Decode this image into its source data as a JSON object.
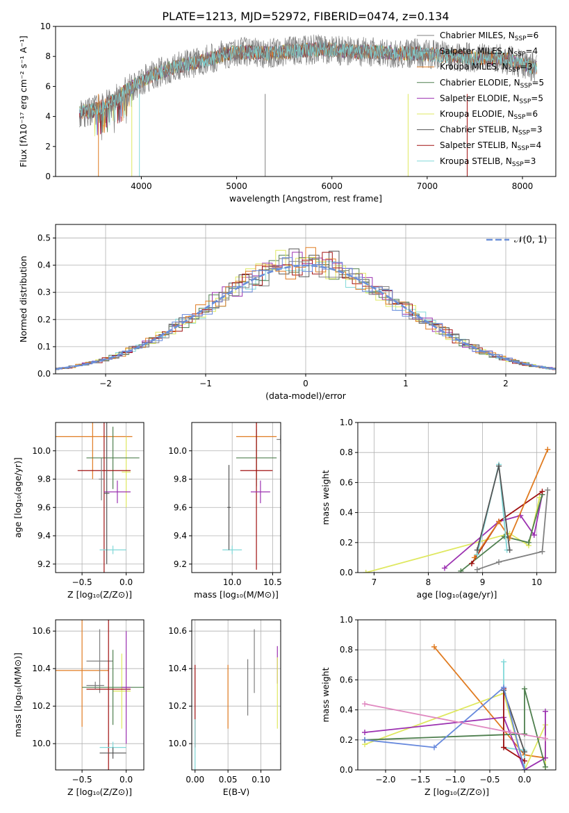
{
  "figure_title": "PLATE=1213, MJD=52972, FIBERID=0474, z=0.134",
  "models": [
    {
      "name": "Chabrier MILES",
      "nssp": "6",
      "color": "#808080"
    },
    {
      "name": "Salpeter MILES",
      "nssp": "4",
      "color": "#7a7a7a"
    },
    {
      "name": "Kroupa MILES",
      "nssp": "3",
      "color": "#e07b20"
    },
    {
      "name": "Chabrier ELODIE",
      "nssp": "5",
      "color": "#4e7f4e"
    },
    {
      "name": "Salpeter ELODIE",
      "nssp": "5",
      "color": "#9b30b0"
    },
    {
      "name": "Kroupa ELODIE",
      "nssp": "6",
      "color": "#dfe860"
    },
    {
      "name": "Chabrier STELIB",
      "nssp": "3",
      "color": "#555555"
    },
    {
      "name": "Salpeter STELIB",
      "nssp": "4",
      "color": "#a01010"
    },
    {
      "name": "Kroupa STELIB",
      "nssp": "3",
      "color": "#80d8d8"
    }
  ],
  "extra_colors": {
    "blue": "#6688dd",
    "pink": "#e088c0",
    "dashed": "#6a8fd8"
  },
  "chart_data": [
    {
      "id": "spectrum",
      "type": "line",
      "xlabel": "wavelength [Angstrom, rest frame]",
      "ylabel": "Flux [fλ10⁻¹⁷ erg cm⁻² s⁻¹ A⁻¹]",
      "xlim": [
        3100,
        8350
      ],
      "ylim": [
        0,
        10
      ],
      "xticks": [
        4000,
        5000,
        6000,
        7000,
        8000
      ],
      "yticks": [
        0,
        2,
        4,
        6,
        8,
        10
      ],
      "grid": false,
      "legend": "right",
      "x": [
        3300,
        3500,
        3700,
        3900,
        4100,
        4300,
        4500,
        4700,
        4900,
        5100,
        5300,
        5500,
        5700,
        5900,
        6100,
        6300,
        6500,
        6700,
        6900,
        7100,
        7300,
        7500,
        7700,
        7900,
        8100
      ],
      "y": [
        4.2,
        4.4,
        5.0,
        6.0,
        6.7,
        7.2,
        7.5,
        7.8,
        8.2,
        8.3,
        8.2,
        8.3,
        8.4,
        8.5,
        8.4,
        8.3,
        8.3,
        8.2,
        8.2,
        8.1,
        8.0,
        7.9,
        7.9,
        7.7,
        7.3
      ]
    },
    {
      "id": "residuals",
      "type": "histogram",
      "xlabel": "(data-model)/error",
      "ylabel": "Normed distribution",
      "xlim": [
        -2.5,
        2.5
      ],
      "ylim": [
        0,
        0.55
      ],
      "xticks": [
        -2,
        -1,
        0,
        1,
        2
      ],
      "yticks": [
        0.0,
        0.1,
        0.2,
        0.3,
        0.4,
        0.5
      ],
      "grid": true,
      "legend": "top-right",
      "reference_label": "𝒩(0, 1)",
      "bin_width": 0.1
    },
    {
      "id": "age_vs_Z",
      "type": "errorbar",
      "xlabel": "Z [log₁₀(Z/Z⊙)]",
      "ylabel": "age  [log₁₀(age/yr)]",
      "xlim": [
        -0.8,
        0.2
      ],
      "ylim": [
        9.14,
        10.2
      ],
      "xticks": [
        -0.5,
        0.0
      ],
      "yticks": [
        9.2,
        9.4,
        9.6,
        9.8,
        10.0
      ],
      "grid": true,
      "points": [
        {
          "model": 2,
          "x": -0.38,
          "xerr": 0.45,
          "y": 10.1,
          "yerr": 0.3
        },
        {
          "model": 5,
          "x": 0.0,
          "xerr": 0.05,
          "y": 9.85,
          "yerr": 0.25
        },
        {
          "model": 3,
          "x": -0.15,
          "xerr": 0.3,
          "y": 9.95,
          "yerr": 0.22
        },
        {
          "model": 7,
          "x": -0.25,
          "xerr": 0.3,
          "y": 9.86,
          "yerr": 0.8
        },
        {
          "model": 4,
          "x": -0.1,
          "xerr": 0.15,
          "y": 9.71,
          "yerr": 0.08
        },
        {
          "model": 8,
          "x": -0.15,
          "xerr": 0.15,
          "y": 9.3,
          "yerr": 0.03
        },
        {
          "model": 6,
          "x": -0.22,
          "xerr": 0.03,
          "y": 9.7,
          "yerr": 0.5
        },
        {
          "model": 0,
          "x": -0.28,
          "xerr": 0.03,
          "y": 9.8,
          "yerr": 0.15
        }
      ]
    },
    {
      "id": "age_vs_mass",
      "type": "errorbar",
      "xlabel": "mass [log₁₀(M/M⊙)]",
      "ylabel": "",
      "xlim": [
        9.5,
        10.6
      ],
      "ylim": [
        9.14,
        10.2
      ],
      "xticks": [
        10.0,
        10.5
      ],
      "yticks": [
        9.2,
        9.4,
        9.6,
        9.8,
        10.0
      ],
      "grid": true,
      "points": [
        {
          "model": 2,
          "x": 10.3,
          "xerr": 0.25,
          "y": 10.1,
          "yerr": 0.3
        },
        {
          "model": 3,
          "x": 10.3,
          "xerr": 0.25,
          "y": 9.95,
          "yerr": 0.2
        },
        {
          "model": 7,
          "x": 10.3,
          "xerr": 0.2,
          "y": 9.86,
          "yerr": 0.7
        },
        {
          "model": 4,
          "x": 10.35,
          "xerr": 0.12,
          "y": 9.71,
          "yerr": 0.08
        },
        {
          "model": 8,
          "x": 10.0,
          "xerr": 0.12,
          "y": 9.3,
          "yerr": 0.03
        },
        {
          "model": 0,
          "x": 10.6,
          "xerr": 0.05,
          "y": 10.08,
          "yerr": 0.03
        },
        {
          "model": 6,
          "x": 9.96,
          "xerr": 0.02,
          "y": 9.6,
          "yerr": 0.3
        }
      ]
    },
    {
      "id": "weight_vs_age",
      "type": "line",
      "xlabel": "age  [log₁₀(age/yr)]",
      "ylabel": "mass weight",
      "xlim": [
        6.7,
        10.35
      ],
      "ylim": [
        0,
        1
      ],
      "xticks": [
        7,
        8,
        9,
        10
      ],
      "yticks": [
        0.0,
        0.2,
        0.4,
        0.6,
        0.8,
        1.0
      ],
      "grid": true,
      "series": [
        {
          "model": 5,
          "x": [
            6.85,
            9.5,
            9.85,
            10.05
          ],
          "y": [
            0.0,
            0.26,
            0.18,
            0.5
          ]
        },
        {
          "model": 4,
          "x": [
            8.3,
            9.3,
            9.7,
            9.95,
            10.1
          ],
          "y": [
            0.03,
            0.34,
            0.38,
            0.25,
            0.52
          ]
        },
        {
          "model": 3,
          "x": [
            8.6,
            9.4,
            9.85,
            10.1
          ],
          "y": [
            0.01,
            0.24,
            0.2,
            0.52
          ]
        },
        {
          "model": 7,
          "x": [
            8.8,
            9.3,
            10.1
          ],
          "y": [
            0.06,
            0.34,
            0.54
          ]
        },
        {
          "model": 2,
          "x": [
            8.85,
            9.3,
            9.5,
            10.2
          ],
          "y": [
            0.1,
            0.34,
            0.23,
            0.82
          ]
        },
        {
          "model": 8,
          "x": [
            8.9,
            9.3,
            9.45
          ],
          "y": [
            0.12,
            0.72,
            0.15
          ]
        },
        {
          "model": 6,
          "x": [
            8.9,
            9.3,
            9.5
          ],
          "y": [
            0.15,
            0.71,
            0.15
          ]
        },
        {
          "model": 0,
          "x": [
            8.9,
            9.3,
            10.1,
            10.2
          ],
          "y": [
            0.02,
            0.07,
            0.14,
            0.55
          ]
        }
      ]
    },
    {
      "id": "mass_vs_Z",
      "type": "errorbar",
      "xlabel": "Z [log₁₀(Z/Z⊙)]",
      "ylabel": "mass [log₁₀(M/M⊙)]",
      "xlim": [
        -0.8,
        0.2
      ],
      "ylim": [
        9.86,
        10.66
      ],
      "xticks": [
        -0.5,
        0.0
      ],
      "yticks": [
        10.0,
        10.2,
        10.4,
        10.6
      ],
      "grid": true,
      "points": [
        {
          "model": 2,
          "x": -0.5,
          "xerr": 0.3,
          "y": 10.39,
          "yerr": 0.3
        },
        {
          "model": 0,
          "x": -0.3,
          "xerr": 0.15,
          "y": 10.44,
          "yerr": 0.17
        },
        {
          "model": 5,
          "x": -0.05,
          "xerr": 0.1,
          "y": 10.28,
          "yerr": 0.2
        },
        {
          "model": 3,
          "x": -0.15,
          "xerr": 0.35,
          "y": 10.3,
          "yerr": 0.2
        },
        {
          "model": 7,
          "x": -0.2,
          "xerr": 0.25,
          "y": 10.29,
          "yerr": 0.6
        },
        {
          "model": 4,
          "x": 0.0,
          "xerr": 0.05,
          "y": 10.3,
          "yerr": 0.3
        },
        {
          "model": 8,
          "x": -0.15,
          "xerr": 0.15,
          "y": 9.98,
          "yerr": 0.03
        },
        {
          "model": 6,
          "x": -0.15,
          "xerr": 0.15,
          "y": 9.95,
          "yerr": 0.03
        },
        {
          "model": 1,
          "x": -0.35,
          "xerr": 0.1,
          "y": 10.31,
          "yerr": 0.02
        }
      ]
    },
    {
      "id": "mass_vs_ebv",
      "type": "errorbar",
      "xlabel": "E(B-V)",
      "ylabel": "",
      "xlim": [
        -0.005,
        0.13
      ],
      "ylim": [
        9.86,
        10.66
      ],
      "xticks": [
        0.0,
        0.05,
        0.1
      ],
      "yticks": [
        10.0,
        10.2,
        10.4,
        10.6
      ],
      "grid": true,
      "points": [
        {
          "model": 7,
          "x": 0.0,
          "xerr": 0,
          "y": 10.2,
          "yerr": 0.22
        },
        {
          "model": 8,
          "x": 0.0,
          "xerr": 0,
          "y": 9.98,
          "yerr": 0.15
        },
        {
          "model": 2,
          "x": 0.05,
          "xerr": 0,
          "y": 10.25,
          "yerr": 0.17
        },
        {
          "model": 1,
          "x": 0.08,
          "xerr": 0,
          "y": 10.3,
          "yerr": 0.15
        },
        {
          "model": 0,
          "x": 0.09,
          "xerr": 0,
          "y": 10.44,
          "yerr": 0.17
        },
        {
          "model": 4,
          "x": 0.125,
          "xerr": 0,
          "y": 10.42,
          "yerr": 0.1
        },
        {
          "model": 5,
          "x": 0.125,
          "xerr": 0,
          "y": 10.27,
          "yerr": 0.19
        }
      ]
    },
    {
      "id": "weight_vs_Z",
      "type": "line",
      "xlabel": "Z [log₁₀(Z/Z⊙)]",
      "ylabel": "mass weight",
      "xlim": [
        -2.4,
        0.45
      ],
      "ylim": [
        0,
        1
      ],
      "xticks": [
        -2.0,
        -1.5,
        -1.0,
        -0.5,
        0.0
      ],
      "yticks": [
        0.0,
        0.2,
        0.4,
        0.6,
        0.8,
        1.0
      ],
      "grid": true,
      "series": [
        {
          "model": 2,
          "x": [
            -1.3,
            0.0,
            0.3
          ],
          "y": [
            0.82,
            0.1,
            0.08
          ]
        },
        {
          "model": 8,
          "x": [
            -0.3,
            -0.3,
            0.0,
            0.0
          ],
          "y": [
            0.72,
            0.15,
            0.13,
            0.0
          ]
        },
        {
          "model": 5,
          "x": [
            -2.3,
            -0.3,
            0.0,
            0.3,
            0.3
          ],
          "y": [
            0.17,
            0.51,
            0.0,
            0.3,
            0.02
          ]
        },
        {
          "model": 4,
          "x": [
            -2.3,
            -0.3,
            0.0,
            0.3,
            0.3
          ],
          "y": [
            0.25,
            0.35,
            0.0,
            0.08,
            0.39
          ]
        },
        {
          "model": 3,
          "x": [
            -2.3,
            0.0,
            0.0,
            0.3
          ],
          "y": [
            0.2,
            0.24,
            0.54,
            0.02
          ]
        },
        {
          "model": 7,
          "x": [
            -0.3,
            -0.3,
            0.0
          ],
          "y": [
            0.54,
            0.15,
            0.06
          ]
        },
        {
          "model": 6,
          "x": [
            -0.3,
            0.0
          ],
          "y": [
            0.53,
            0.12
          ]
        },
        {
          "model": 9,
          "x": [
            -2.3,
            -1.3,
            -0.3,
            0.0
          ],
          "y": [
            0.2,
            0.15,
            0.55,
            0.0
          ]
        },
        {
          "model": 10,
          "x": [
            -2.3,
            -0.2,
            0.3
          ],
          "y": [
            0.44,
            0.25,
            0.21
          ]
        }
      ]
    }
  ]
}
